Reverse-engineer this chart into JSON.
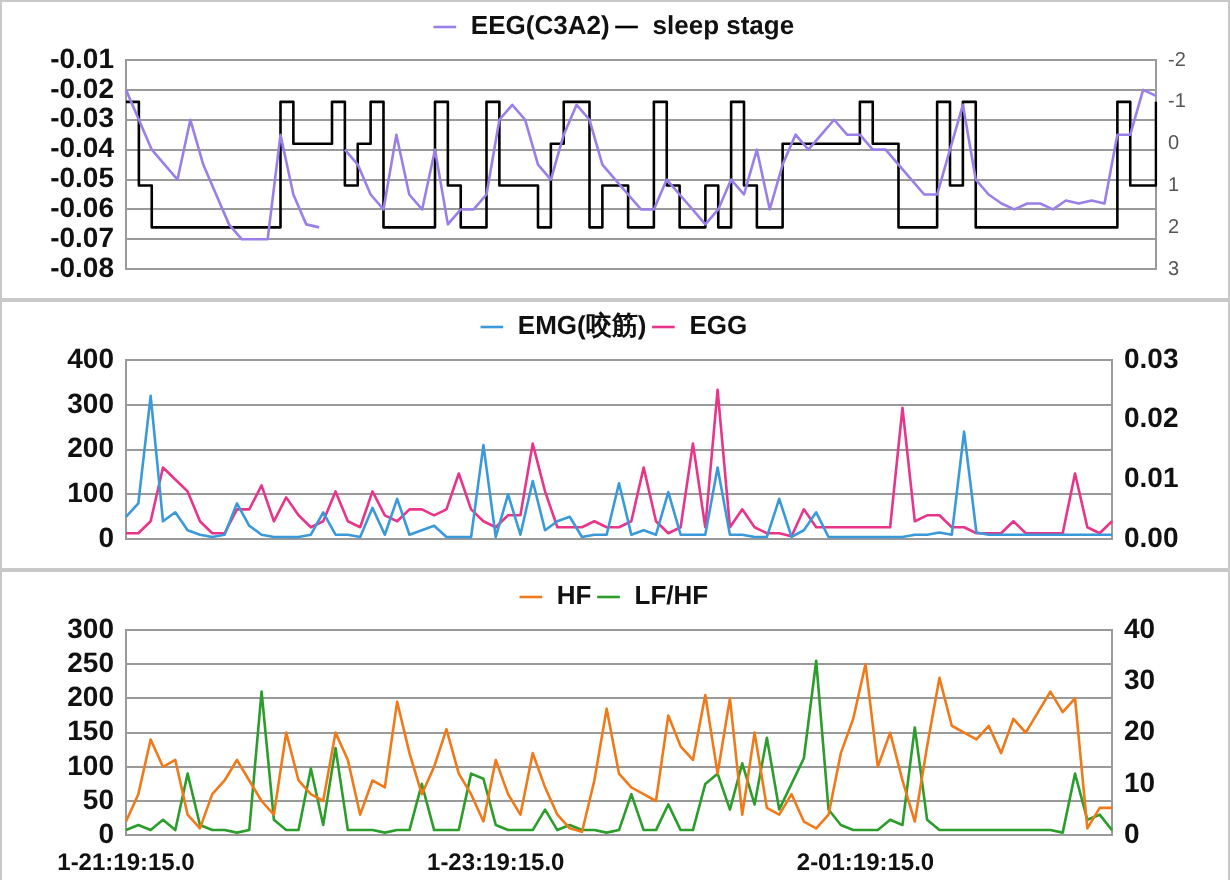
{
  "chart_data": [
    {
      "type": "line",
      "categories": [
        null,
        null,
        null,
        null,
        null,
        null,
        null,
        null,
        null,
        null,
        null,
        null,
        null,
        null,
        null,
        null,
        null,
        null,
        null,
        null,
        null,
        null,
        null,
        null,
        null,
        null,
        null,
        null,
        null,
        null,
        null,
        null,
        null,
        null,
        null,
        null,
        null,
        null,
        null,
        null,
        null,
        null,
        null,
        null,
        null,
        null,
        null,
        null,
        null,
        null,
        null,
        null,
        null,
        null,
        null,
        null,
        null,
        null,
        null,
        null,
        null,
        null,
        null,
        null,
        null,
        null,
        null,
        null,
        null,
        null,
        null,
        null,
        null,
        null,
        null,
        null,
        null,
        null,
        null,
        null,
        null
      ],
      "series": [
        {
          "name": "EEG(C3A2)",
          "color": "#9b7fe8",
          "values": [
            -0.02,
            -0.03,
            -0.04,
            -0.045,
            -0.05,
            -0.03,
            -0.045,
            -0.055,
            -0.065,
            -0.07,
            -0.07,
            -0.07,
            -0.035,
            -0.055,
            -0.065,
            -0.066,
            null,
            -0.04,
            -0.045,
            -0.055,
            -0.06,
            -0.035,
            -0.055,
            -0.06,
            -0.04,
            -0.065,
            -0.06,
            -0.06,
            -0.055,
            -0.03,
            -0.025,
            -0.03,
            -0.045,
            -0.05,
            -0.035,
            -0.025,
            -0.03,
            -0.045,
            -0.05,
            -0.055,
            -0.06,
            -0.06,
            -0.05,
            -0.055,
            -0.06,
            -0.065,
            -0.06,
            -0.05,
            -0.055,
            -0.04,
            -0.06,
            -0.045,
            -0.035,
            -0.04,
            -0.035,
            -0.03,
            -0.035,
            -0.035,
            -0.04,
            -0.04,
            -0.045,
            -0.05,
            -0.055,
            -0.055,
            -0.04,
            -0.025,
            -0.05,
            -0.055,
            -0.058,
            -0.06,
            -0.058,
            -0.058,
            -0.06,
            -0.057,
            -0.058,
            -0.057,
            -0.058,
            -0.035,
            -0.035,
            -0.02,
            -0.022
          ]
        },
        {
          "name": "sleep stage",
          "type": "step",
          "axis": "y2",
          "color": "#000000",
          "values": [
            -1,
            1,
            2,
            2,
            2,
            2,
            2,
            2,
            2,
            2,
            2,
            2,
            -1,
            0,
            0,
            0,
            -1,
            1,
            0,
            -1,
            2,
            2,
            2,
            2,
            -1,
            1,
            2,
            2,
            -1,
            1,
            1,
            1,
            2,
            0,
            -1,
            -1,
            2,
            1,
            1,
            2,
            2,
            -1,
            1,
            2,
            2,
            1,
            2,
            -1,
            1,
            2,
            2,
            0,
            0,
            0,
            0,
            0,
            0,
            -1,
            0,
            0,
            2,
            2,
            2,
            -1,
            1,
            -1,
            2,
            2,
            2,
            2,
            2,
            2,
            2,
            2,
            2,
            2,
            2,
            -1,
            1,
            1,
            -1
          ]
        }
      ],
      "ylim": [
        -0.08,
        -0.01
      ],
      "yticks": [
        -0.08,
        -0.07,
        -0.06,
        -0.05,
        -0.04,
        -0.03,
        -0.02,
        -0.01
      ],
      "y2lim": [
        3,
        -2
      ],
      "y2ticks": [
        -2,
        -1,
        0,
        1,
        2,
        3
      ],
      "grid": "y",
      "legend": "top",
      "marker": "none",
      "tick_labels": "y"
    },
    {
      "type": "line",
      "categories": [
        null,
        null,
        null,
        null,
        null,
        null,
        null,
        null,
        null,
        null,
        null,
        null,
        null,
        null,
        null,
        null,
        null,
        null,
        null,
        null,
        null,
        null,
        null,
        null,
        null,
        null,
        null,
        null,
        null,
        null,
        null,
        null,
        null,
        null,
        null,
        null,
        null,
        null,
        null,
        null,
        null,
        null,
        null,
        null,
        null,
        null,
        null,
        null,
        null,
        null,
        null,
        null,
        null,
        null,
        null,
        null,
        null,
        null,
        null,
        null,
        null,
        null,
        null,
        null,
        null,
        null,
        null,
        null,
        null,
        null,
        null,
        null,
        null,
        null,
        null,
        null,
        null,
        null,
        null,
        null,
        null
      ],
      "series": [
        {
          "name": "EMG(咬筋)",
          "color": "#3a9ad9",
          "values": [
            50,
            80,
            320,
            40,
            60,
            20,
            10,
            5,
            10,
            80,
            30,
            10,
            5,
            5,
            5,
            10,
            60,
            10,
            10,
            5,
            70,
            10,
            90,
            10,
            20,
            30,
            5,
            5,
            5,
            210,
            5,
            100,
            10,
            130,
            20,
            40,
            50,
            5,
            10,
            10,
            125,
            10,
            20,
            10,
            105,
            10,
            10,
            10,
            160,
            10,
            10,
            5,
            5,
            90,
            5,
            20,
            60,
            5,
            5,
            5,
            5,
            5,
            5,
            5,
            10,
            10,
            15,
            10,
            240,
            15,
            10,
            10,
            10,
            10,
            10,
            10,
            10,
            10,
            10,
            10,
            10
          ]
        },
        {
          "name": "EGG",
          "axis": "y2",
          "color": "#e8358a",
          "values": [
            0.001,
            0.001,
            0.003,
            0.012,
            0.01,
            0.008,
            0.003,
            0.001,
            0.001,
            0.005,
            0.005,
            0.009,
            0.003,
            0.007,
            0.004,
            0.002,
            0.003,
            0.008,
            0.003,
            0.002,
            0.008,
            0.004,
            0.003,
            0.005,
            0.005,
            0.004,
            0.005,
            0.011,
            0.005,
            0.003,
            0.002,
            0.004,
            0.004,
            0.016,
            0.008,
            0.002,
            0.002,
            0.002,
            0.003,
            0.002,
            0.002,
            0.003,
            0.012,
            0.003,
            0.001,
            0.002,
            0.016,
            0.002,
            0.025,
            0.002,
            0.005,
            0.002,
            0.001,
            0.001,
            0.0005,
            0.005,
            0.002,
            0.002,
            0.002,
            0.002,
            0.002,
            0.002,
            0.002,
            0.022,
            0.003,
            0.004,
            0.004,
            0.002,
            0.002,
            0.001,
            0.001,
            0.001,
            0.003,
            0.001,
            0.001,
            0.001,
            0.001,
            0.011,
            0.002,
            0.001,
            0.003
          ]
        }
      ],
      "ylim": [
        0,
        400
      ],
      "yticks": [
        0,
        100,
        200,
        300,
        400
      ],
      "y2lim": [
        0,
        0.03
      ],
      "y2ticks": [
        {
          "value": 0,
          "label": "0.00"
        },
        {
          "value": 0.01,
          "label": "0.01"
        },
        {
          "value": 0.02,
          "label": "0.02"
        },
        {
          "value": 0.03,
          "label": "0.03"
        }
      ],
      "grid": "y",
      "legend": "top",
      "marker": "none",
      "tick_labels": "y"
    },
    {
      "type": "line",
      "categories": [
        "1-21:19:15.0",
        null,
        null,
        null,
        null,
        null,
        null,
        null,
        null,
        null,
        null,
        null,
        null,
        null,
        null,
        null,
        null,
        null,
        null,
        null,
        null,
        null,
        null,
        null,
        null,
        null,
        null,
        null,
        null,
        null,
        "1-23:19:15.0",
        null,
        null,
        null,
        null,
        null,
        null,
        null,
        null,
        null,
        null,
        null,
        null,
        null,
        null,
        null,
        null,
        null,
        null,
        null,
        null,
        null,
        null,
        null,
        null,
        null,
        null,
        null,
        null,
        null,
        "2-01:19:15.0",
        null,
        null,
        null,
        null,
        null,
        null,
        null,
        null,
        null,
        null,
        null,
        null,
        null,
        null,
        null,
        null,
        null,
        null,
        null,
        null
      ],
      "series": [
        {
          "name": "HF",
          "color": "#f07a1a",
          "values": [
            20,
            60,
            140,
            100,
            110,
            30,
            10,
            60,
            80,
            110,
            80,
            50,
            30,
            150,
            80,
            60,
            50,
            150,
            110,
            30,
            80,
            70,
            195,
            120,
            60,
            100,
            155,
            90,
            60,
            20,
            110,
            60,
            30,
            120,
            70,
            30,
            10,
            5,
            80,
            185,
            90,
            70,
            60,
            50,
            175,
            130,
            110,
            205,
            90,
            200,
            30,
            150,
            40,
            30,
            60,
            20,
            10,
            30,
            120,
            170,
            250,
            100,
            150,
            80,
            20,
            130,
            230,
            160,
            150,
            140,
            160,
            120,
            170,
            150,
            180,
            210,
            180,
            200,
            10,
            40,
            40
          ]
        },
        {
          "name": "LF/HF",
          "axis": "y2",
          "color": "#2a9d2a",
          "values": [
            1,
            2,
            1,
            3,
            1,
            12,
            2,
            1,
            1,
            0.5,
            1,
            28,
            3,
            1,
            1,
            13,
            2,
            17,
            1,
            1,
            1,
            0.5,
            1,
            1,
            10,
            1,
            1,
            1,
            12,
            11,
            2,
            1,
            1,
            1,
            5,
            1,
            2,
            1,
            1,
            0.5,
            1,
            8,
            1,
            1,
            6,
            1,
            1,
            10,
            12,
            5,
            14,
            6,
            19,
            5,
            10,
            15,
            34,
            5,
            2,
            1,
            1,
            1,
            3,
            2,
            21,
            3,
            1,
            1,
            1,
            1,
            1,
            1,
            1,
            1,
            1,
            1,
            0.5,
            12,
            3,
            4,
            1
          ]
        }
      ],
      "ylim": [
        0,
        300
      ],
      "yticks": [
        0,
        50,
        100,
        150,
        200,
        250,
        300
      ],
      "y2lim": [
        0,
        40
      ],
      "y2ticks": [
        0,
        10,
        20,
        30,
        40
      ],
      "grid": "y",
      "legend": "top",
      "marker": "none"
    }
  ]
}
